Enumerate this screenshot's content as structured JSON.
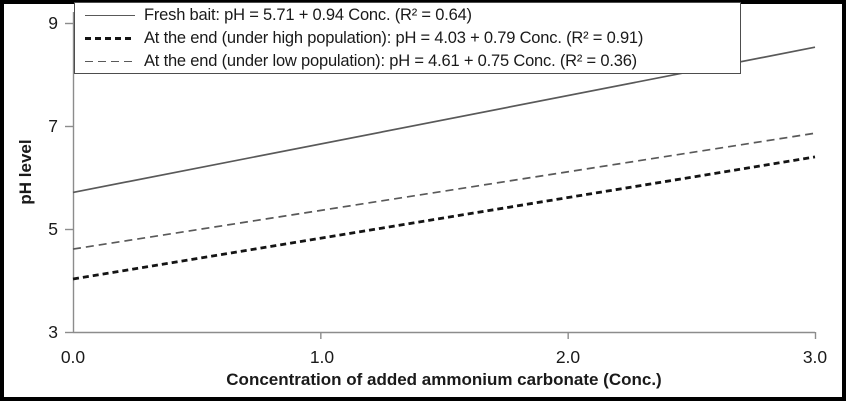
{
  "chart_data": {
    "type": "line",
    "title": "",
    "xlabel": "Concentration of added ammonium carbonate (Conc.)",
    "ylabel": "pH level",
    "xlim": [
      0.0,
      3.0
    ],
    "ylim": [
      3,
      9
    ],
    "xticks": [
      "0.0",
      "1.0",
      "2.0",
      "3.0"
    ],
    "yticks": [
      "3",
      "5",
      "7",
      "9"
    ],
    "grid": false,
    "legend_position": "top",
    "axis_color": "#8c8c8c",
    "series": [
      {
        "name": "Fresh bait",
        "label": "Fresh bait: pH = 5.71 + 0.94 Conc. (R² = 0.64)",
        "intercept": 5.71,
        "slope": 0.94,
        "r_squared": 0.64,
        "x": [
          0.0,
          3.0
        ],
        "y": [
          5.71,
          8.53
        ],
        "line_style": "solid",
        "line_width": 1.7,
        "dash": null,
        "color": "#595959"
      },
      {
        "name": "At the end (under high population)",
        "label": "At the end (under high population): pH = 4.03 + 0.79 Conc. (R² = 0.91)",
        "intercept": 4.03,
        "slope": 0.79,
        "r_squared": 0.91,
        "x": [
          0.0,
          3.0
        ],
        "y": [
          4.03,
          6.4
        ],
        "line_style": "dashed",
        "line_width": 2.8,
        "dash": [
          6,
          4
        ],
        "color": "#141414"
      },
      {
        "name": "At the end (under low population)",
        "label": "At the end (under low population): pH = 4.61 + 0.75 Conc. (R² = 0.36)",
        "intercept": 4.61,
        "slope": 0.75,
        "r_squared": 0.36,
        "x": [
          0.0,
          3.0
        ],
        "y": [
          4.61,
          6.86
        ],
        "line_style": "dashed",
        "line_width": 1.7,
        "dash": [
          8,
          5
        ],
        "color": "#595959"
      }
    ]
  }
}
